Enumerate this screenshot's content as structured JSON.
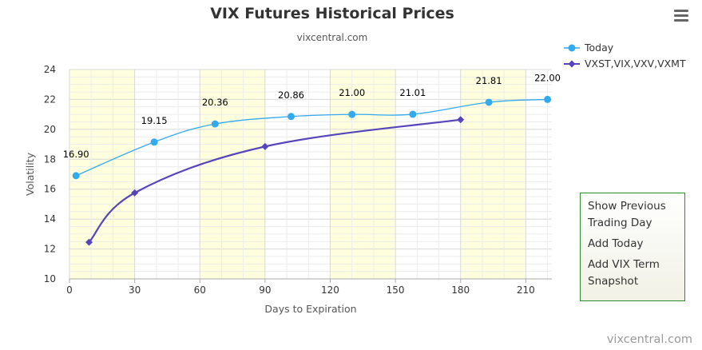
{
  "header": {
    "title": "VIX Futures Historical Prices",
    "subtitle": "vixcentral.com"
  },
  "menu": {
    "icon": "hamburger-menu-icon"
  },
  "legend": [
    {
      "name": "Today",
      "color": "#33aaee",
      "marker": "circle"
    },
    {
      "name": "VXST,VIX,VXV,VXMT",
      "color": "#5544bb",
      "marker": "diamond"
    }
  ],
  "side_menu": [
    {
      "label": "Show Previous Trading Day"
    },
    {
      "label": "Add Today"
    },
    {
      "label": "Add VIX Term Snapshot"
    }
  ],
  "credit": "vixcentral.com",
  "chart_data": {
    "type": "line",
    "title": "VIX Futures Historical Prices",
    "subtitle": "vixcentral.com",
    "xlabel": "Days to Expiration",
    "ylabel": "Volatility",
    "xlim": [
      0,
      222
    ],
    "ylim": [
      10,
      24
    ],
    "xticks": [
      0,
      30,
      60,
      90,
      120,
      150,
      180,
      210
    ],
    "yticks": [
      10,
      12,
      14,
      16,
      18,
      20,
      22,
      24
    ],
    "shaded_bands": [
      [
        0,
        30
      ],
      [
        60,
        90
      ],
      [
        120,
        150
      ],
      [
        180,
        210
      ]
    ],
    "grid": true,
    "legend_position": "top-right",
    "series": [
      {
        "name": "Today",
        "color": "#33aaee",
        "marker": "circle",
        "points": [
          [
            3,
            16.9
          ],
          [
            39,
            19.15
          ],
          [
            67,
            20.36
          ],
          [
            102,
            20.86
          ],
          [
            130,
            21.0
          ],
          [
            158,
            21.01
          ],
          [
            193,
            21.81
          ],
          [
            220,
            22.0
          ]
        ],
        "labels": [
          "16.90",
          "19.15",
          "20.36",
          "20.86",
          "21.00",
          "21.01",
          "21.81",
          "22.00"
        ]
      },
      {
        "name": "VXST,VIX,VXV,VXMT",
        "color": "#5544bb",
        "marker": "diamond",
        "points": [
          [
            9,
            12.45
          ],
          [
            30,
            15.75
          ],
          [
            90,
            18.85
          ],
          [
            180,
            20.65
          ]
        ]
      }
    ]
  }
}
